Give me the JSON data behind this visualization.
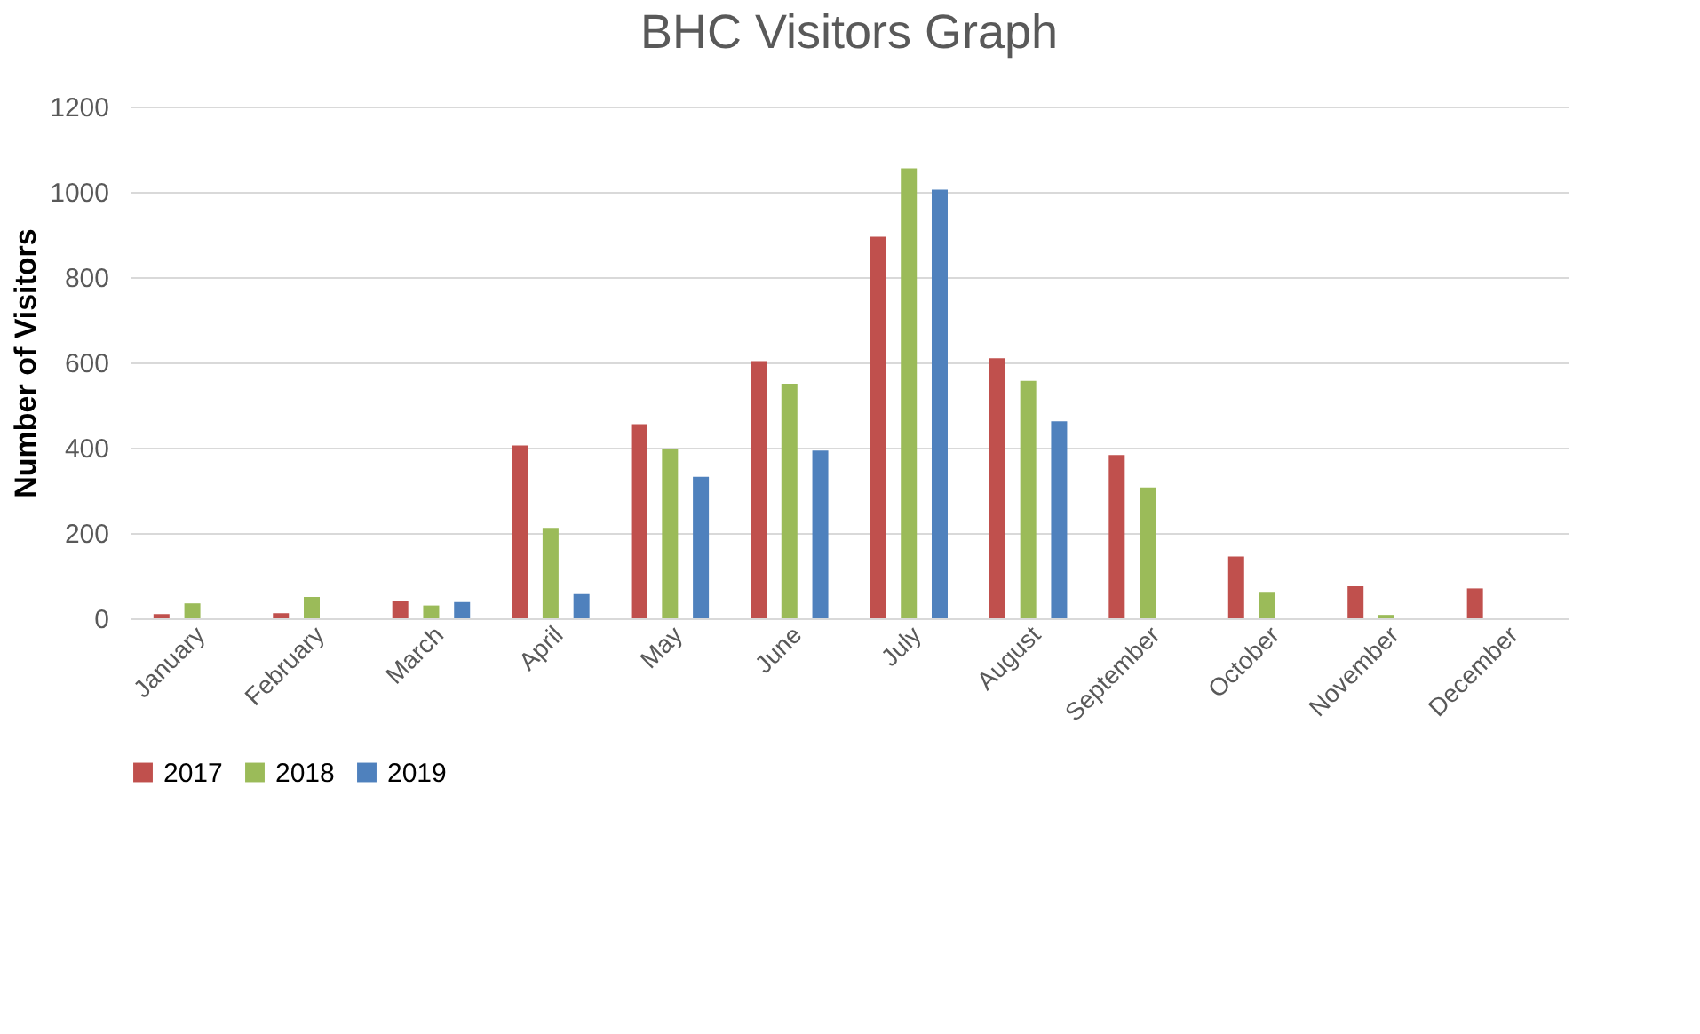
{
  "chart_data": {
    "type": "bar",
    "title": "BHC Visitors Graph",
    "ylabel": "Number of Visitors",
    "categories": [
      "January",
      "February",
      "March",
      "April",
      "May",
      "June",
      "July",
      "August",
      "September",
      "October",
      "November",
      "December"
    ],
    "series": [
      {
        "name": "2017",
        "color": "#c0504d",
        "values": [
          10,
          12,
          40,
          405,
          455,
          603,
          895,
          610,
          383,
          145,
          75,
          70
        ]
      },
      {
        "name": "2018",
        "color": "#9bbb59",
        "values": [
          35,
          50,
          30,
          212,
          397,
          550,
          1055,
          557,
          307,
          62,
          8,
          null
        ]
      },
      {
        "name": "2019",
        "color": "#4f81bd",
        "values": [
          null,
          null,
          38,
          57,
          332,
          393,
          1005,
          462,
          null,
          null,
          null,
          null
        ]
      }
    ],
    "ylim": [
      0,
      1200
    ],
    "yticks": [
      0,
      200,
      400,
      600,
      800,
      1000,
      1200
    ],
    "grid": "y",
    "legend": "bottom"
  }
}
